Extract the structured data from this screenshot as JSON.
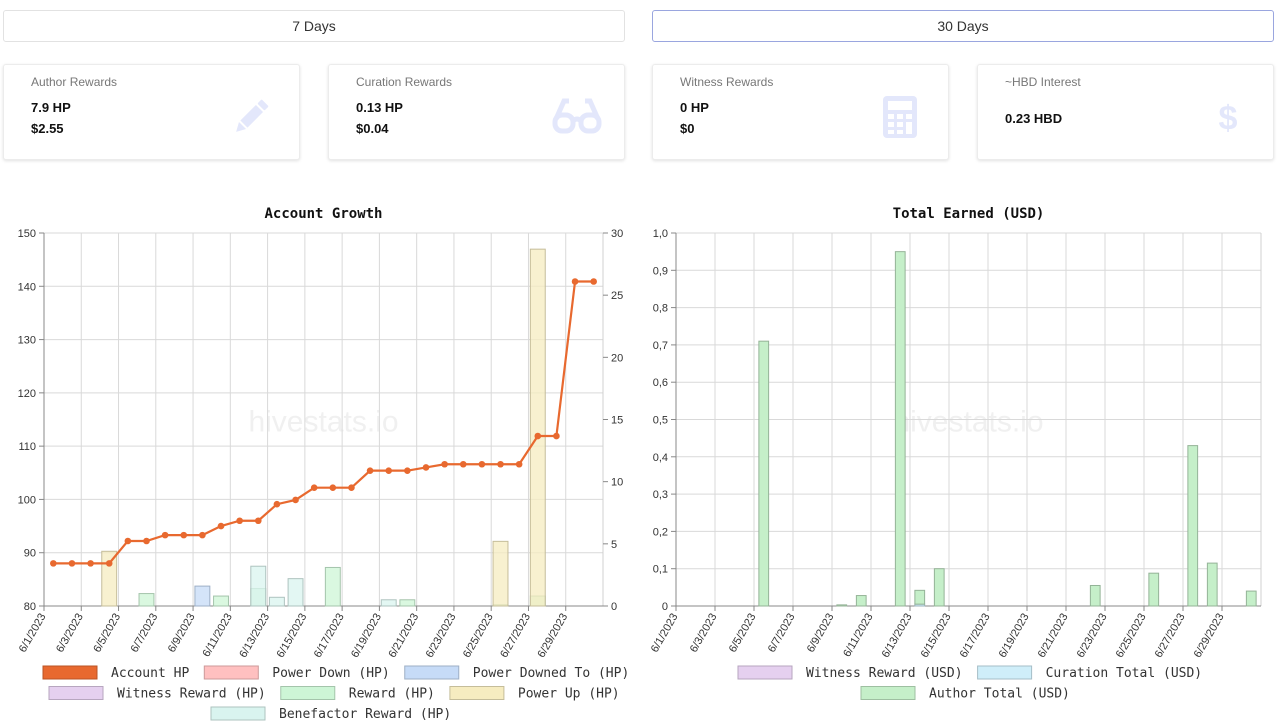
{
  "tabs": [
    {
      "label": "7 Days",
      "active": false
    },
    {
      "label": "30 Days",
      "active": true
    }
  ],
  "cards": [
    {
      "title": "Author Rewards",
      "line1": "7.9 HP",
      "line2": "$2.55",
      "icon": "pencil-icon"
    },
    {
      "title": "Curation Rewards",
      "line1": "0.13 HP",
      "line2": "$0.04",
      "icon": "glasses-icon"
    },
    {
      "title": "Witness Rewards",
      "line1": "0 HP",
      "line2": "$0",
      "icon": "calculator-icon"
    },
    {
      "title": "~HBD Interest",
      "line1": "0.23 HBD",
      "line2": "",
      "icon": "dollar-icon"
    }
  ],
  "colors": {
    "account_hp": "#e8692f",
    "icon_tint": "#e3e7fb",
    "power_down": "#ffc0c0",
    "power_downed_to": "#c6dbf7",
    "witness_reward": "#e5d0ef",
    "reward": "#cdf5d6",
    "power_up": "#f6ecc0",
    "benefactor": "#d9f4ef",
    "curation_total": "#cfeef9",
    "author_total": "#c5efc9"
  },
  "watermark": "hivestats.io",
  "chart_data": [
    {
      "type": "line",
      "title": "Account Growth",
      "x": [
        "6/1/2023",
        "6/2/2023",
        "6/3/2023",
        "6/4/2023",
        "6/5/2023",
        "6/6/2023",
        "6/7/2023",
        "6/8/2023",
        "6/9/2023",
        "6/10/2023",
        "6/11/2023",
        "6/12/2023",
        "6/13/2023",
        "6/14/2023",
        "6/15/2023",
        "6/16/2023",
        "6/17/2023",
        "6/18/2023",
        "6/19/2023",
        "6/20/2023",
        "6/21/2023",
        "6/22/2023",
        "6/23/2023",
        "6/24/2023",
        "6/25/2023",
        "6/26/2023",
        "6/27/2023",
        "6/28/2023",
        "6/29/2023",
        "6/30/2023"
      ],
      "xtick_labels": [
        "6/1/2023",
        "6/3/2023",
        "6/5/2023",
        "6/7/2023",
        "6/9/2023",
        "6/11/2023",
        "6/13/2023",
        "6/15/2023",
        "6/17/2023",
        "6/19/2023",
        "6/21/2023",
        "6/23/2023",
        "6/25/2023",
        "6/27/2023",
        "6/29/2023"
      ],
      "ylim": [
        80,
        150
      ],
      "yticks": [
        80,
        90,
        100,
        110,
        120,
        130,
        140,
        150
      ],
      "y2lim": [
        0,
        30
      ],
      "y2ticks": [
        0,
        5,
        10,
        15,
        20,
        25,
        30
      ],
      "grid": true,
      "legend_position": "bottom",
      "series": [
        {
          "name": "Account HP",
          "axis": "left",
          "kind": "line",
          "color": "#e8692f",
          "values": [
            88,
            88,
            88,
            88,
            92.2,
            92.2,
            93.3,
            93.3,
            93.3,
            95,
            96,
            96,
            99.1,
            99.9,
            102.2,
            102.2,
            102.2,
            105.4,
            105.4,
            105.4,
            106,
            106.6,
            106.6,
            106.6,
            106.6,
            106.6,
            111.9,
            111.9,
            140.9,
            140.9
          ]
        },
        {
          "name": "Power Down (HP)",
          "axis": "right",
          "kind": "bar",
          "color": "#ffc0c0",
          "values": [
            0,
            0,
            0,
            0,
            0,
            0,
            0,
            0,
            0,
            0,
            0,
            0,
            0,
            0,
            0,
            0,
            0,
            0,
            0,
            0,
            0,
            0,
            0,
            0,
            0,
            0,
            0,
            0,
            0,
            0
          ]
        },
        {
          "name": "Power Downed To (HP)",
          "axis": "right",
          "kind": "bar",
          "color": "#c6dbf7",
          "values": [
            0,
            0,
            0,
            0,
            0,
            0,
            0,
            0,
            1.6,
            0,
            0,
            0,
            0,
            0,
            0,
            0,
            0,
            0,
            0,
            0,
            0,
            0,
            0,
            0,
            0,
            0,
            0,
            0,
            0,
            0
          ]
        },
        {
          "name": "Witness Reward (HP)",
          "axis": "right",
          "kind": "bar",
          "color": "#e5d0ef",
          "values": [
            0,
            0,
            0,
            0,
            0,
            0,
            0,
            0,
            0,
            0,
            0,
            0,
            0,
            0,
            0,
            0,
            0,
            0,
            0,
            0,
            0,
            0,
            0,
            0,
            0,
            0,
            0,
            0,
            0,
            0
          ]
        },
        {
          "name": "Reward (HP)",
          "axis": "right",
          "kind": "bar",
          "color": "#cdf5d6",
          "values": [
            0,
            0,
            0,
            0,
            0,
            1,
            0,
            0,
            0,
            0.8,
            0,
            1.4,
            0,
            0,
            0,
            3.1,
            0,
            0,
            0,
            0.5,
            0,
            0,
            0,
            0,
            0.1,
            0,
            0.8,
            0,
            0,
            0
          ]
        },
        {
          "name": "Power Up (HP)",
          "axis": "right",
          "kind": "bar",
          "color": "#f6ecc0",
          "values": [
            0,
            0,
            0,
            4.4,
            0,
            0,
            0,
            0,
            0,
            0,
            0,
            0,
            0,
            0,
            0,
            0,
            0,
            0,
            0,
            0,
            0,
            0,
            0,
            0,
            5.2,
            0,
            28.7,
            0,
            0,
            0
          ]
        },
        {
          "name": "Benefactor Reward (HP)",
          "axis": "right",
          "kind": "bar",
          "color": "#d9f4ef",
          "values": [
            0,
            0,
            0,
            0,
            0,
            0,
            0,
            0,
            0,
            0,
            0,
            3.2,
            0.7,
            2.2,
            0,
            0,
            0,
            0,
            0.5,
            0,
            0,
            0,
            0,
            0,
            0,
            0,
            0,
            0,
            0,
            0
          ]
        }
      ]
    },
    {
      "type": "bar",
      "title": "Total Earned (USD)",
      "x": [
        "6/1/2023",
        "6/2/2023",
        "6/3/2023",
        "6/4/2023",
        "6/5/2023",
        "6/6/2023",
        "6/7/2023",
        "6/8/2023",
        "6/9/2023",
        "6/10/2023",
        "6/11/2023",
        "6/12/2023",
        "6/13/2023",
        "6/14/2023",
        "6/15/2023",
        "6/16/2023",
        "6/17/2023",
        "6/18/2023",
        "6/19/2023",
        "6/20/2023",
        "6/21/2023",
        "6/22/2023",
        "6/23/2023",
        "6/24/2023",
        "6/25/2023",
        "6/26/2023",
        "6/27/2023",
        "6/28/2023",
        "6/29/2023",
        "6/30/2023"
      ],
      "xtick_labels": [
        "6/1/2023",
        "6/3/2023",
        "6/5/2023",
        "6/7/2023",
        "6/9/2023",
        "6/11/2023",
        "6/13/2023",
        "6/15/2023",
        "6/17/2023",
        "6/19/2023",
        "6/21/2023",
        "6/23/2023",
        "6/25/2023",
        "6/27/2023",
        "6/29/2023"
      ],
      "ylim": [
        0,
        1
      ],
      "yticks": [
        0,
        0.1,
        0.2,
        0.3,
        0.4,
        0.5,
        0.6,
        0.7,
        0.8,
        0.9,
        1.0
      ],
      "ytick_labels": [
        "0",
        "0,1",
        "0,2",
        "0,3",
        "0,4",
        "0,5",
        "0,6",
        "0,7",
        "0,8",
        "0,9",
        "1,0"
      ],
      "grid": true,
      "legend_position": "bottom",
      "stacked": true,
      "series": [
        {
          "name": "Witness Reward (USD)",
          "color": "#e5d0ef",
          "values": [
            0,
            0,
            0,
            0,
            0,
            0,
            0,
            0,
            0,
            0,
            0,
            0,
            0,
            0,
            0,
            0,
            0,
            0,
            0,
            0,
            0,
            0,
            0,
            0,
            0,
            0,
            0,
            0,
            0,
            0
          ]
        },
        {
          "name": "Curation Total (USD)",
          "color": "#cfeef9",
          "values": [
            0,
            0,
            0,
            0,
            0,
            0,
            0,
            0,
            0,
            0,
            0,
            0,
            0.005,
            0,
            0,
            0,
            0,
            0,
            0,
            0,
            0,
            0,
            0,
            0,
            0,
            0,
            0,
            0,
            0,
            0
          ]
        },
        {
          "name": "Author Total (USD)",
          "color": "#c5efc9",
          "values": [
            0,
            0,
            0,
            0,
            0.71,
            0,
            0,
            0,
            0.003,
            0.028,
            0,
            0.95,
            0.037,
            0.1,
            0,
            0,
            0,
            0,
            0,
            0,
            0,
            0.055,
            0,
            0,
            0.088,
            0,
            0.43,
            0.115,
            0,
            0.04
          ]
        }
      ]
    }
  ]
}
